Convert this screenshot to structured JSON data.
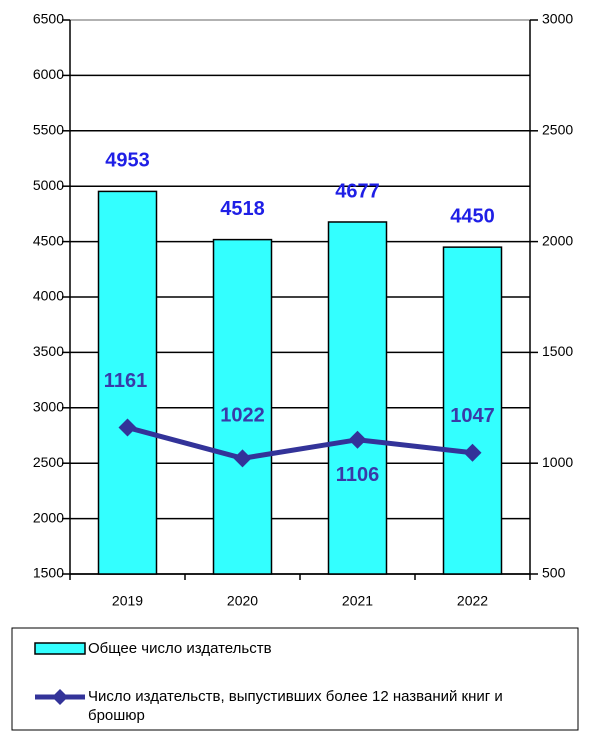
{
  "chart_data": {
    "type": "bar-line",
    "categories": [
      "2019",
      "2020",
      "2021",
      "2022"
    ],
    "series": [
      {
        "name": "Общее число издательств",
        "color": "#33ffff",
        "type": "bar",
        "values": [
          4953,
          4518,
          4677,
          4450
        ]
      },
      {
        "name": "Число издательств, выпустивших более 12 названий книг и брошюр",
        "color": "#333399",
        "type": "line",
        "axis": "y2",
        "values": [
          1161,
          1022,
          1106,
          1047
        ]
      }
    ],
    "ylim": [
      1500,
      6500
    ],
    "yticks": [
      1500,
      2000,
      2500,
      3000,
      3500,
      4000,
      4500,
      5000,
      5500,
      6000,
      6500
    ],
    "y2lim": [
      500,
      3000
    ],
    "y2ticks": [
      500,
      1000,
      1500,
      2000,
      2500,
      3000
    ],
    "grid": true
  }
}
